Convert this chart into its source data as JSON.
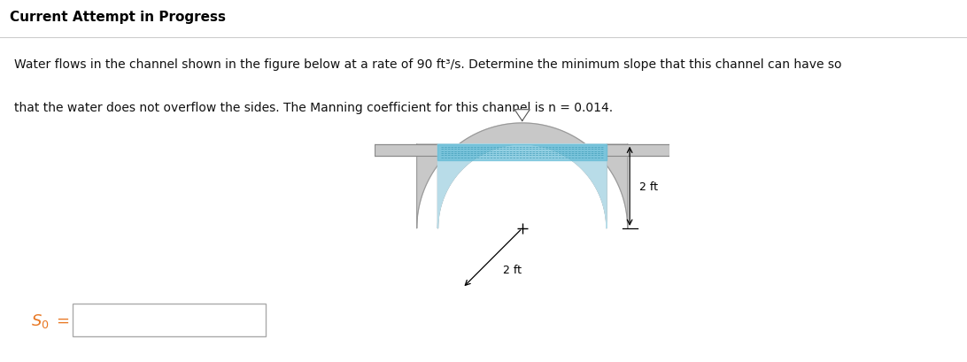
{
  "title": "Current Attempt in Progress",
  "problem_text_line1": "Water flows in the channel shown in the figure below at a rate of 90 ft³/s. Determine the minimum slope that this channel can have so",
  "problem_text_line2": "that the water does not overflow the sides. The Manning coefficient for this channel is n = 0.014.",
  "label_so": "S₀ =",
  "label_2ft_radius": "2 ft",
  "label_2ft_height": "2 ft",
  "bg_color": "#ffffff",
  "title_color": "#000000",
  "so_color": "#e87722",
  "channel_wall_color": "#c8c8c8",
  "channel_wall_edge": "#999999",
  "water_fill_color": "#b8dce8",
  "water_surface_color": "#5bb8d4",
  "input_box_edge": "#aaaaaa"
}
